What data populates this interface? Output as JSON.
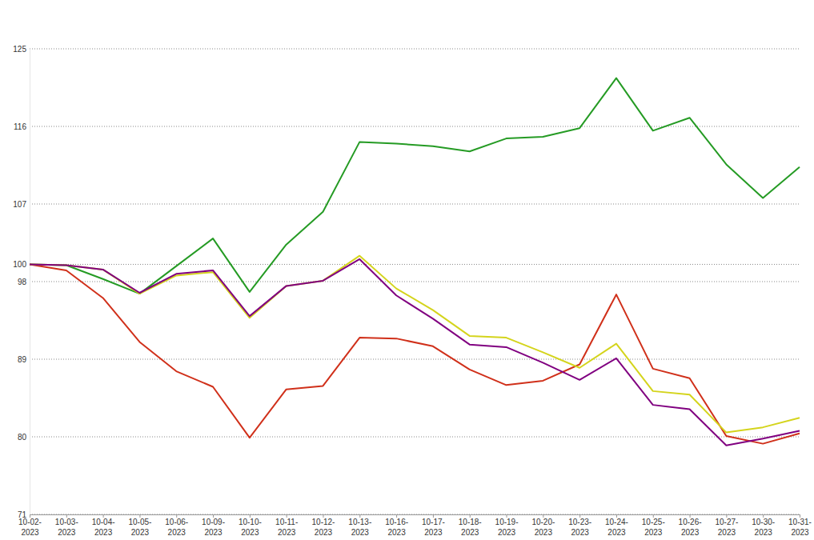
{
  "chart_data": {
    "type": "line",
    "x": [
      "10-02-2023",
      "10-03-2023",
      "10-04-2023",
      "10-05-2023",
      "10-06-2023",
      "10-09-2023",
      "10-10-2023",
      "10-11-2023",
      "10-12-2023",
      "10-13-2023",
      "10-16-2023",
      "10-17-2023",
      "10-18-2023",
      "10-19-2023",
      "10-20-2023",
      "10-23-2023",
      "10-24-2023",
      "10-25-2023",
      "10-26-2023",
      "10-27-2023",
      "10-30-2023",
      "10-31-2023"
    ],
    "series": [
      {
        "color": "#259b24",
        "values": [
          100,
          99.9,
          98.3,
          96.6,
          99.8,
          103.0,
          96.8,
          102.3,
          106.1,
          114.2,
          114.0,
          113.7,
          113.1,
          114.6,
          114.8,
          115.8,
          121.6,
          115.5,
          117.0,
          111.6,
          107.7,
          111.3
        ]
      },
      {
        "color": "#d0301a",
        "values": [
          100,
          99.3,
          96.1,
          91.0,
          87.6,
          85.8,
          79.9,
          85.5,
          85.9,
          91.5,
          91.4,
          90.5,
          87.8,
          86.0,
          86.5,
          88.4,
          96.5,
          87.9,
          86.8,
          80.1,
          79.2,
          80.4
        ]
      },
      {
        "color": "#d4d41c",
        "values": [
          100,
          99.9,
          99.4,
          96.6,
          98.7,
          99.1,
          93.8,
          97.5,
          98.1,
          101.0,
          97.2,
          94.7,
          91.7,
          91.5,
          89.8,
          88.0,
          90.8,
          85.3,
          84.9,
          80.5,
          81.1,
          82.2
        ]
      },
      {
        "color": "#800080",
        "values": [
          100,
          99.9,
          99.4,
          96.7,
          98.9,
          99.3,
          94.0,
          97.5,
          98.1,
          100.6,
          96.4,
          93.7,
          90.7,
          90.4,
          88.6,
          86.6,
          89.1,
          83.7,
          83.2,
          79.0,
          79.8,
          80.7
        ]
      }
    ],
    "ylim": [
      71,
      125
    ],
    "yticks": [
      71,
      80,
      89,
      98,
      100,
      107,
      116,
      125
    ],
    "grid": true
  }
}
